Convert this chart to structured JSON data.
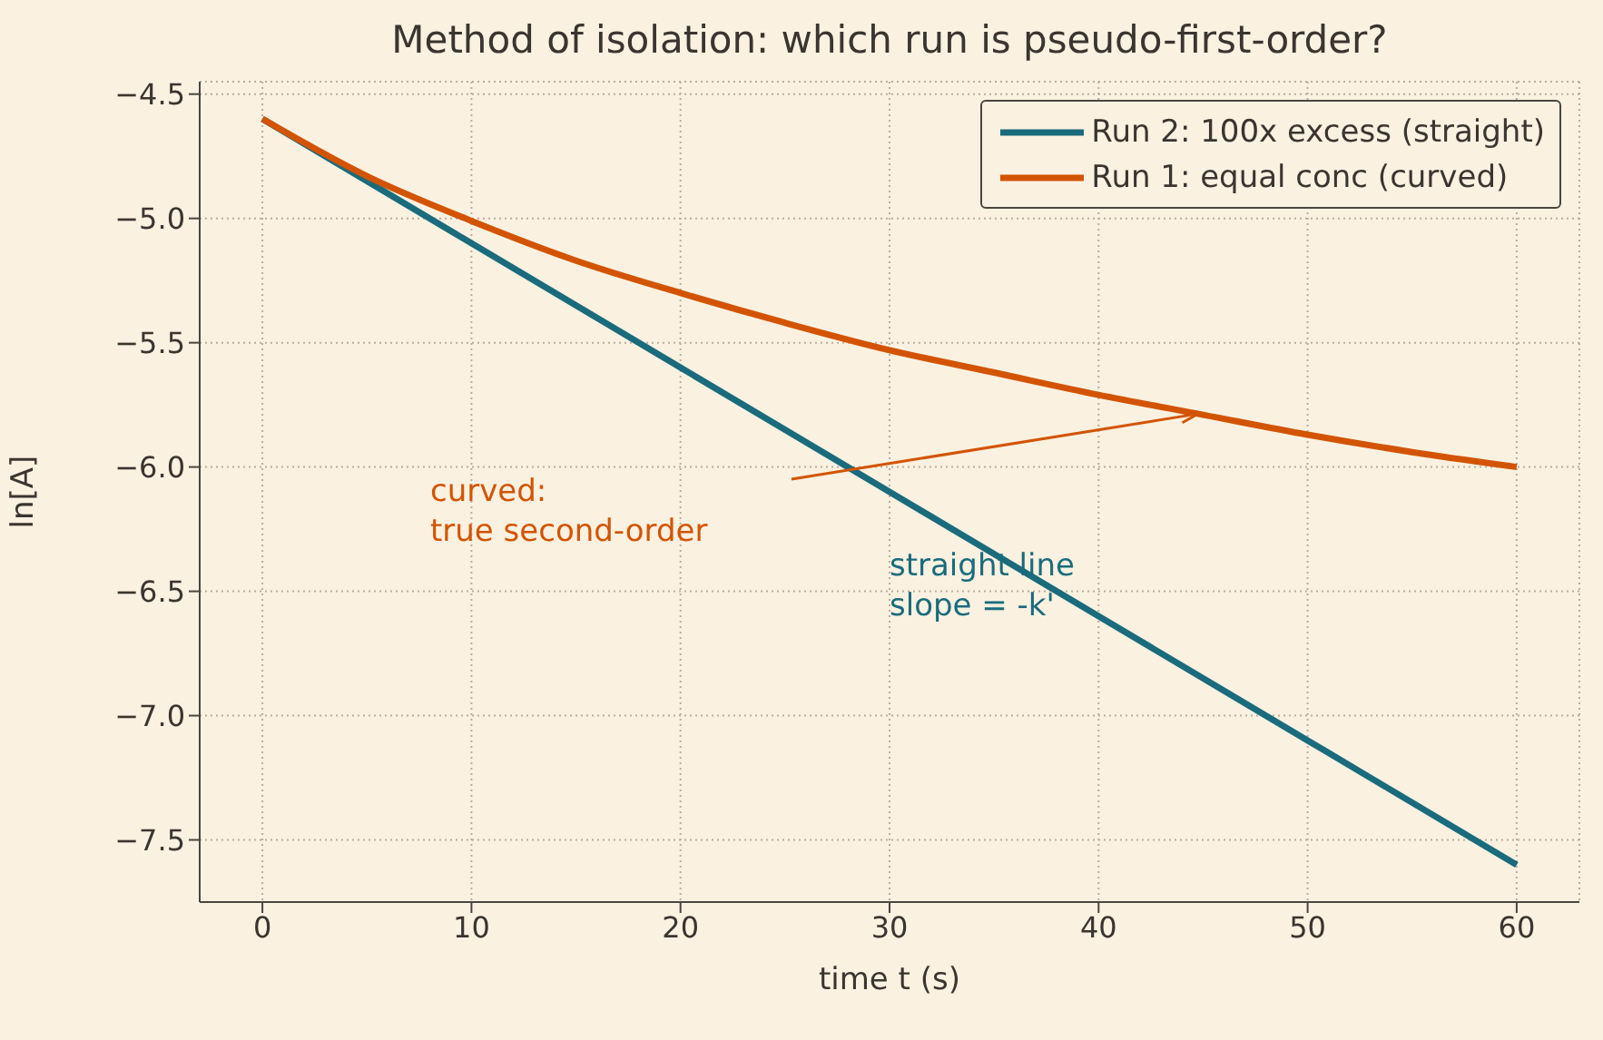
{
  "chart_data": {
    "type": "line",
    "title": "Method of isolation: which run is pseudo-first-order?",
    "xlabel": "time  t  (s)",
    "ylabel": "ln[A]",
    "xlim": [
      -3,
      63
    ],
    "xticks": [
      0,
      10,
      20,
      30,
      40,
      50,
      60
    ],
    "ylim": [
      -7.75,
      -4.45
    ],
    "yticks": [
      -7.5,
      {
        "value": -7,
        "label": "−7.0"
      },
      -6.5,
      {
        "value": -6,
        "label": "−6.0"
      },
      -5.5,
      {
        "value": -5,
        "label": "−5.0"
      },
      -4.5
    ],
    "grid": true,
    "legend": "top right",
    "marker": "none",
    "line_style": "solid",
    "series": [
      {
        "name": "Run 2: 100x excess (straight)",
        "color": "#1a6b7c",
        "x": [
          0,
          10,
          20,
          30,
          40,
          50,
          60
        ],
        "values": [
          -4.6,
          -5.1,
          -5.6,
          -6.1,
          -6.6,
          -7.1,
          -7.6
        ]
      },
      {
        "name": "Run 1: equal conc (curved)",
        "color": "#d35400",
        "x": [
          0,
          5,
          10,
          15,
          20,
          25,
          30,
          35,
          40,
          45,
          50,
          55,
          60
        ],
        "values": [
          -4.6,
          -4.83,
          -5.01,
          -5.17,
          -5.3,
          -5.42,
          -5.53,
          -5.62,
          -5.71,
          -5.79,
          -5.87,
          -5.94,
          -6.0
        ]
      }
    ],
    "annotations": [
      "curved:\ntrue second-order",
      "straight line\nslope = -k'"
    ]
  }
}
